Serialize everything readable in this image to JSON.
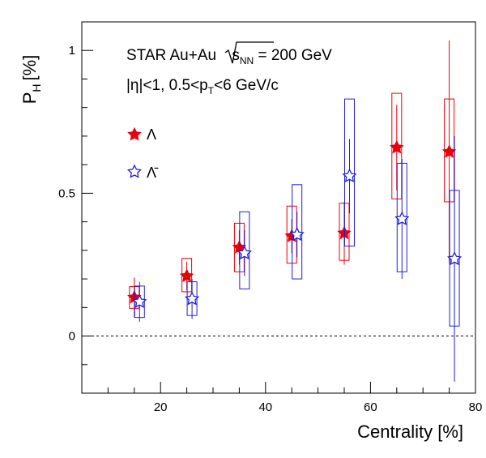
{
  "chart_data": {
    "type": "scatter",
    "xlabel": "Centrality [%]",
    "ylabel_main": "P",
    "ylabel_sub": "H",
    "ylabel_unit": "[%]",
    "xlim": [
      5,
      80
    ],
    "ylim": [
      -0.2,
      1.1
    ],
    "x_ticks": [
      20,
      40,
      60,
      80
    ],
    "y_ticks": [
      0,
      0.5,
      1
    ],
    "y_tick_labels": [
      "0",
      "0.5",
      "1"
    ],
    "zero_line": true,
    "annotation_line1_prefix": "STAR Au+Au ",
    "annotation_line1_s": "s",
    "annotation_line1_sub": "NN",
    "annotation_line1_suffix": " = 200 GeV",
    "annotation_line2_prefix": "|η|<1, 0.5<p",
    "annotation_line2_sub": "T",
    "annotation_line2_suffix": "<6 GeV/c",
    "series": [
      {
        "name": "Λ",
        "color": "#e8000b",
        "marker": "filled-star",
        "points": [
          {
            "x": 15,
            "y": 0.135,
            "stat": 0.07,
            "sys_lo": 0.097,
            "sys_hi": 0.173
          },
          {
            "x": 25,
            "y": 0.21,
            "stat": 0.05,
            "sys_lo": 0.155,
            "sys_hi": 0.272
          },
          {
            "x": 35,
            "y": 0.31,
            "stat": 0.06,
            "sys_lo": 0.225,
            "sys_hi": 0.395
          },
          {
            "x": 45,
            "y": 0.35,
            "stat": 0.06,
            "sys_lo": 0.255,
            "sys_hi": 0.455
          },
          {
            "x": 55,
            "y": 0.36,
            "stat": 0.11,
            "sys_lo": 0.265,
            "sys_hi": 0.465
          },
          {
            "x": 65,
            "y": 0.66,
            "stat": 0.15,
            "sys_lo": 0.48,
            "sys_hi": 0.85
          },
          {
            "x": 75,
            "y": 0.645,
            "stat": 0.39,
            "sys_lo": 0.47,
            "sys_hi": 0.83
          }
        ]
      },
      {
        "name": "Λ̄",
        "color": "#1f1fd6",
        "marker": "open-star",
        "points": [
          {
            "x": 16,
            "y": 0.12,
            "stat": 0.07,
            "sys_lo": 0.065,
            "sys_hi": 0.175
          },
          {
            "x": 26,
            "y": 0.13,
            "stat": 0.07,
            "sys_lo": 0.072,
            "sys_hi": 0.19
          },
          {
            "x": 36,
            "y": 0.29,
            "stat": 0.08,
            "sys_lo": 0.165,
            "sys_hi": 0.435
          },
          {
            "x": 46,
            "y": 0.355,
            "stat": 0.08,
            "sys_lo": 0.2,
            "sys_hi": 0.53
          },
          {
            "x": 56,
            "y": 0.56,
            "stat": 0.13,
            "sys_lo": 0.315,
            "sys_hi": 0.83
          },
          {
            "x": 66,
            "y": 0.41,
            "stat": 0.21,
            "sys_lo": 0.225,
            "sys_hi": 0.605
          },
          {
            "x": 76,
            "y": 0.27,
            "stat": 0.43,
            "sys_lo": 0.035,
            "sys_hi": 0.51
          }
        ]
      }
    ]
  }
}
